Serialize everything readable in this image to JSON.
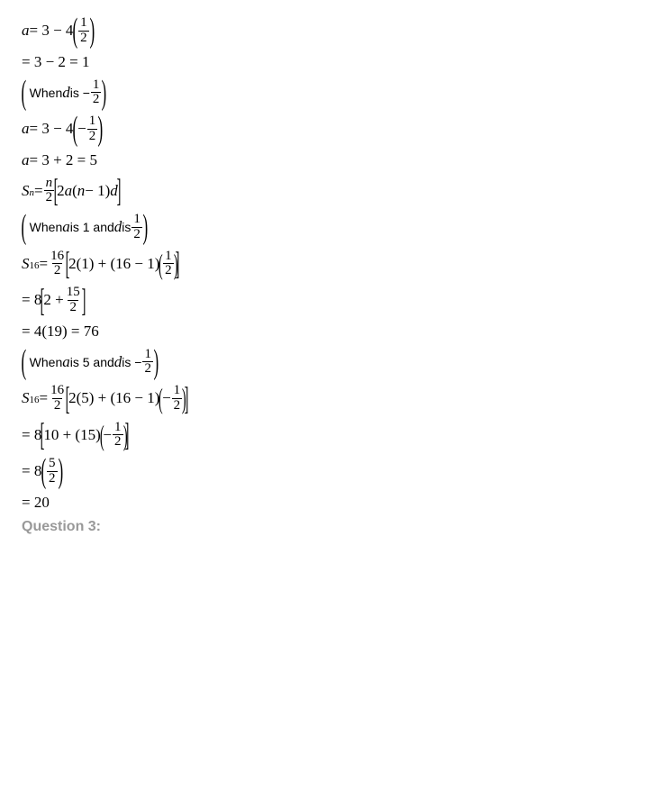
{
  "lines": {
    "l1_a": "a",
    "l1_eq1": " = 3 − 4",
    "l1_fn": "1",
    "l1_fd": "2",
    "l2": "= 3 − 2 = 1",
    "l3_pre": "When ",
    "l3_d": "d",
    "l3_mid": " is  −",
    "l3_fn": "1",
    "l3_fd": "2",
    "l4_a": "a",
    "l4_eq": " = 3 − 4",
    "l4_neg": "−",
    "l4_fn": "1",
    "l4_fd": "2",
    "l5_a": "a",
    "l5_eq": " = 3 + 2 = 5",
    "l6_S": "S",
    "l6_n": "n",
    "l6_eq": " = ",
    "l6_fn": "n",
    "l6_fd": "2",
    "l6_br": "2",
    "l6_a": "a",
    "l6_p1": "(",
    "l6_nm1": "n",
    "l6_m1": " − 1",
    "l6_p2": ")",
    "l6_d": "d",
    "l7_pre": "When ",
    "l7_a": "a",
    "l7_mid1": " is 1 and ",
    "l7_d": "d",
    "l7_mid2": " is  ",
    "l7_fn": "1",
    "l7_fd": "2",
    "l8_S": "S",
    "l8_16": "16",
    "l8_eq": " = ",
    "l8_fn": "16",
    "l8_fd": "2",
    "l8_in1": "2(1) + (16 − 1)",
    "l8_ifn": "1",
    "l8_ifd": "2",
    "l9_eq": "= 8",
    "l9_in1": "2 + ",
    "l9_fn": "15",
    "l9_fd": "2",
    "l10": "= 4(19) = 76",
    "l11_pre": "When ",
    "l11_a": "a",
    "l11_mid1": " is 5 and ",
    "l11_d": "d",
    "l11_mid2": " is  −",
    "l11_fn": "1",
    "l11_fd": "2",
    "l12_S": "S",
    "l12_16": "16",
    "l12_eq": " = ",
    "l12_fn": "16",
    "l12_fd": "2",
    "l12_in1": "2(5) + (16 − 1)",
    "l12_neg": "−",
    "l12_ifn": "1",
    "l12_ifd": "2",
    "l13_eq": "= 8",
    "l13_in1": "10 + (15)",
    "l13_neg": "−",
    "l13_fn": "1",
    "l13_fd": "2",
    "l14_eq": "= 8",
    "l14_fn": "5",
    "l14_fd": "2",
    "l15": "= 20",
    "q3": "Question 3:"
  },
  "colors": {
    "text": "#000000",
    "heading": "#999999",
    "background": "#ffffff"
  },
  "fonts": {
    "math_family": "Times New Roman",
    "math_size_pt": 13,
    "heading_family": "Verdana",
    "heading_size_pt": 12,
    "heading_weight": "bold"
  }
}
